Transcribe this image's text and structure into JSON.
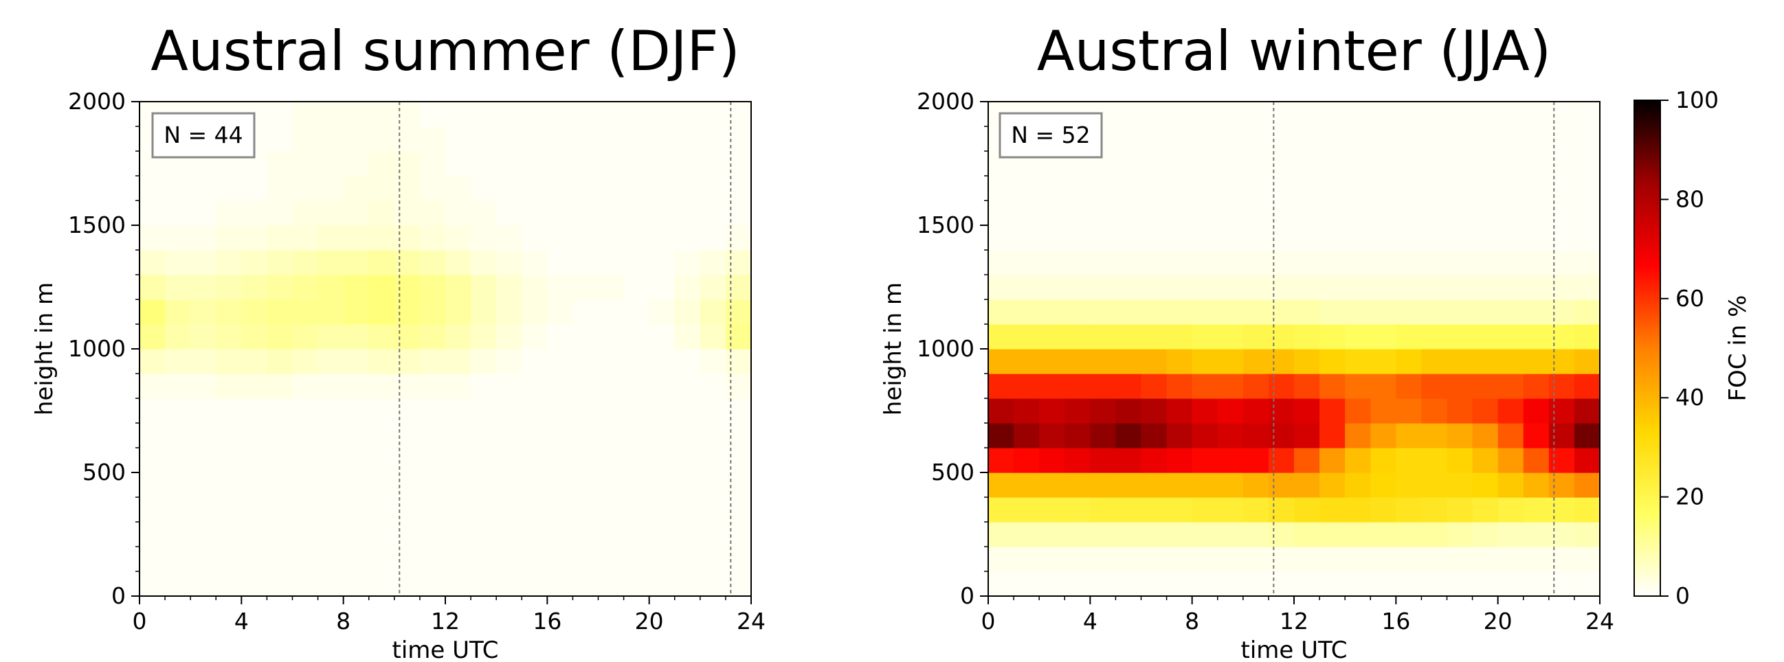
{
  "chart_data": [
    {
      "type": "heatmap",
      "title": "Austral summer (DJF)",
      "xlabel": "time UTC",
      "ylabel": "height in m",
      "xlim": [
        0,
        24
      ],
      "ylim": [
        0,
        2000
      ],
      "xticks": [
        "0",
        "4",
        "8",
        "12",
        "16",
        "20",
        "24"
      ],
      "yticks": [
        "0",
        "500",
        "1000",
        "1500",
        "2000"
      ],
      "annotation": "N = 44",
      "vlines": [
        10.2,
        23.2
      ],
      "grid": false,
      "x": [
        0.5,
        1.5,
        2.5,
        3.5,
        4.5,
        5.5,
        6.5,
        7.5,
        8.5,
        9.5,
        10.5,
        11.5,
        12.5,
        13.5,
        14.5,
        15.5,
        16.5,
        17.5,
        18.5,
        19.5,
        20.5,
        21.5,
        22.5,
        23.5
      ],
      "y": [
        50,
        150,
        250,
        350,
        450,
        550,
        650,
        750,
        850,
        950,
        1050,
        1150,
        1250,
        1350,
        1450,
        1550,
        1650,
        1750,
        1850,
        1950
      ],
      "z": [
        [
          1,
          1,
          1,
          1,
          1,
          1,
          1,
          1,
          1,
          1,
          1,
          1,
          1,
          1,
          1,
          1,
          1,
          1,
          1,
          1,
          1,
          1,
          1,
          1
        ],
        [
          1,
          1,
          1,
          1,
          1,
          1,
          1,
          1,
          1,
          1,
          1,
          1,
          1,
          1,
          1,
          1,
          1,
          1,
          1,
          1,
          1,
          1,
          1,
          1
        ],
        [
          1,
          1,
          1,
          1,
          1,
          1,
          1,
          1,
          1,
          1,
          1,
          1,
          1,
          1,
          1,
          1,
          1,
          1,
          1,
          1,
          1,
          1,
          1,
          1
        ],
        [
          1,
          1,
          1,
          1,
          1,
          1,
          1,
          1,
          1,
          1,
          1,
          1,
          1,
          1,
          1,
          1,
          1,
          1,
          1,
          1,
          1,
          1,
          1,
          1
        ],
        [
          1,
          1,
          1,
          1,
          1,
          1,
          1,
          1,
          1,
          1,
          1,
          1,
          1,
          1,
          1,
          1,
          1,
          1,
          1,
          1,
          1,
          1,
          1,
          1
        ],
        [
          1,
          1,
          1,
          1,
          1,
          1,
          1,
          1,
          1,
          1,
          1,
          1,
          1,
          1,
          1,
          1,
          1,
          1,
          1,
          1,
          1,
          1,
          1,
          1
        ],
        [
          1,
          1,
          1,
          1,
          1,
          1,
          1,
          1,
          1,
          1,
          1,
          1,
          1,
          1,
          1,
          1,
          1,
          1,
          1,
          1,
          1,
          1,
          1,
          1
        ],
        [
          1,
          1,
          1,
          1,
          1,
          1,
          1,
          1,
          1,
          1,
          1,
          1,
          1,
          1,
          1,
          1,
          1,
          1,
          1,
          1,
          1,
          1,
          1,
          1
        ],
        [
          2,
          2,
          2,
          3,
          3,
          3,
          2,
          2,
          2,
          2,
          2,
          2,
          2,
          1,
          1,
          1,
          1,
          1,
          1,
          1,
          1,
          1,
          1,
          2
        ],
        [
          6,
          5,
          5,
          6,
          6,
          7,
          6,
          5,
          5,
          6,
          6,
          5,
          5,
          3,
          2,
          1,
          1,
          1,
          1,
          1,
          1,
          1,
          2,
          4
        ],
        [
          12,
          9,
          8,
          9,
          10,
          11,
          10,
          9,
          9,
          10,
          11,
          10,
          8,
          6,
          4,
          2,
          1,
          1,
          1,
          1,
          1,
          3,
          6,
          12
        ],
        [
          14,
          10,
          9,
          10,
          11,
          12,
          12,
          12,
          13,
          14,
          13,
          12,
          10,
          7,
          5,
          3,
          2,
          1,
          1,
          1,
          2,
          4,
          7,
          11
        ],
        [
          9,
          7,
          7,
          8,
          9,
          10,
          11,
          12,
          13,
          14,
          13,
          12,
          10,
          7,
          5,
          3,
          2,
          2,
          2,
          1,
          1,
          3,
          5,
          8
        ],
        [
          5,
          4,
          4,
          5,
          6,
          7,
          8,
          9,
          9,
          10,
          9,
          8,
          6,
          4,
          3,
          2,
          1,
          1,
          1,
          1,
          1,
          2,
          3,
          5
        ],
        [
          2,
          2,
          2,
          3,
          3,
          4,
          4,
          5,
          5,
          5,
          5,
          4,
          3,
          2,
          2,
          1,
          1,
          1,
          1,
          1,
          1,
          1,
          1,
          2
        ],
        [
          1,
          1,
          1,
          2,
          2,
          2,
          3,
          3,
          3,
          4,
          3,
          3,
          2,
          2,
          1,
          1,
          1,
          1,
          1,
          1,
          1,
          1,
          1,
          1
        ],
        [
          1,
          1,
          1,
          1,
          1,
          2,
          2,
          2,
          3,
          3,
          3,
          2,
          2,
          1,
          1,
          1,
          1,
          1,
          1,
          1,
          1,
          1,
          1,
          1
        ],
        [
          1,
          1,
          1,
          1,
          1,
          2,
          2,
          2,
          2,
          3,
          3,
          2,
          1,
          1,
          1,
          1,
          1,
          1,
          1,
          1,
          1,
          1,
          1,
          1
        ],
        [
          1,
          1,
          1,
          1,
          1,
          1,
          2,
          2,
          2,
          2,
          2,
          2,
          1,
          1,
          1,
          1,
          1,
          1,
          1,
          1,
          1,
          1,
          1,
          1
        ],
        [
          1,
          1,
          1,
          1,
          1,
          1,
          2,
          2,
          2,
          2,
          2,
          1,
          1,
          1,
          1,
          1,
          1,
          1,
          1,
          1,
          1,
          1,
          1,
          1
        ]
      ]
    },
    {
      "type": "heatmap",
      "title": "Austral winter (JJA)",
      "xlabel": "time UTC",
      "ylabel": "height in m",
      "xlim": [
        0,
        24
      ],
      "ylim": [
        0,
        2000
      ],
      "xticks": [
        "0",
        "4",
        "8",
        "12",
        "16",
        "20",
        "24"
      ],
      "yticks": [
        "0",
        "500",
        "1000",
        "1500",
        "2000"
      ],
      "annotation": "N = 52",
      "vlines": [
        11.2,
        22.2
      ],
      "grid": false,
      "x": [
        0.5,
        1.5,
        2.5,
        3.5,
        4.5,
        5.5,
        6.5,
        7.5,
        8.5,
        9.5,
        10.5,
        11.5,
        12.5,
        13.5,
        14.5,
        15.5,
        16.5,
        17.5,
        18.5,
        19.5,
        20.5,
        21.5,
        22.5,
        23.5
      ],
      "y": [
        50,
        150,
        250,
        350,
        450,
        550,
        650,
        750,
        850,
        950,
        1050,
        1150,
        1250,
        1350,
        1450,
        1550,
        1650,
        1750,
        1850,
        1950
      ],
      "z": [
        [
          1,
          1,
          1,
          1,
          1,
          1,
          1,
          1,
          1,
          1,
          1,
          1,
          1,
          1,
          1,
          1,
          1,
          1,
          1,
          1,
          1,
          1,
          1,
          1
        ],
        [
          2,
          2,
          2,
          2,
          2,
          2,
          2,
          2,
          2,
          2,
          2,
          2,
          2,
          2,
          2,
          2,
          2,
          2,
          2,
          2,
          2,
          2,
          2,
          2
        ],
        [
          8,
          8,
          8,
          8,
          8,
          8,
          8,
          8,
          8,
          8,
          8,
          9,
          10,
          10,
          10,
          10,
          10,
          10,
          9,
          8,
          7,
          7,
          7,
          8
        ],
        [
          22,
          22,
          22,
          22,
          23,
          23,
          23,
          23,
          24,
          24,
          25,
          27,
          29,
          30,
          30,
          29,
          28,
          27,
          26,
          24,
          22,
          21,
          21,
          22
        ],
        [
          38,
          38,
          38,
          38,
          38,
          38,
          38,
          38,
          38,
          38,
          40,
          42,
          42,
          38,
          35,
          33,
          32,
          32,
          32,
          33,
          36,
          40,
          44,
          48
        ],
        [
          65,
          66,
          68,
          70,
          72,
          72,
          70,
          68,
          66,
          66,
          66,
          62,
          55,
          45,
          38,
          34,
          32,
          32,
          34,
          38,
          45,
          55,
          65,
          72
        ],
        [
          88,
          84,
          80,
          82,
          85,
          88,
          85,
          80,
          76,
          74,
          75,
          76,
          74,
          62,
          50,
          44,
          40,
          40,
          42,
          46,
          55,
          66,
          78,
          88
        ],
        [
          80,
          78,
          76,
          78,
          80,
          82,
          80,
          76,
          72,
          70,
          72,
          74,
          72,
          62,
          55,
          52,
          52,
          54,
          56,
          58,
          62,
          68,
          74,
          80
        ],
        [
          62,
          62,
          62,
          62,
          62,
          62,
          60,
          58,
          56,
          56,
          58,
          60,
          58,
          54,
          52,
          52,
          54,
          56,
          56,
          56,
          56,
          58,
          60,
          62
        ],
        [
          40,
          40,
          40,
          40,
          40,
          40,
          40,
          38,
          36,
          36,
          38,
          38,
          36,
          34,
          32,
          32,
          34,
          36,
          36,
          36,
          36,
          36,
          36,
          38
        ],
        [
          20,
          20,
          20,
          20,
          20,
          20,
          20,
          20,
          19,
          19,
          20,
          20,
          19,
          18,
          17,
          17,
          18,
          18,
          18,
          18,
          18,
          18,
          18,
          19
        ],
        [
          9,
          9,
          9,
          9,
          9,
          9,
          9,
          9,
          9,
          9,
          9,
          9,
          9,
          8,
          8,
          8,
          8,
          8,
          8,
          8,
          8,
          8,
          8,
          9
        ],
        [
          4,
          4,
          4,
          4,
          4,
          4,
          4,
          4,
          4,
          4,
          4,
          4,
          4,
          4,
          4,
          4,
          4,
          4,
          4,
          4,
          4,
          4,
          4,
          4
        ],
        [
          2,
          2,
          2,
          2,
          2,
          2,
          2,
          2,
          2,
          2,
          2,
          2,
          2,
          2,
          2,
          2,
          2,
          2,
          2,
          2,
          2,
          2,
          2,
          2
        ],
        [
          1,
          1,
          1,
          1,
          1,
          1,
          1,
          1,
          1,
          1,
          1,
          1,
          1,
          1,
          1,
          1,
          1,
          1,
          1,
          1,
          1,
          1,
          1,
          1
        ],
        [
          1,
          1,
          1,
          1,
          1,
          1,
          1,
          1,
          1,
          1,
          1,
          1,
          1,
          1,
          1,
          1,
          1,
          1,
          1,
          1,
          1,
          1,
          1,
          1
        ],
        [
          1,
          1,
          1,
          1,
          1,
          1,
          1,
          1,
          1,
          1,
          1,
          1,
          1,
          1,
          1,
          1,
          1,
          1,
          1,
          1,
          1,
          1,
          1,
          1
        ],
        [
          1,
          1,
          1,
          1,
          1,
          1,
          1,
          1,
          1,
          1,
          1,
          1,
          1,
          1,
          1,
          1,
          1,
          1,
          1,
          1,
          1,
          1,
          1,
          1
        ],
        [
          1,
          1,
          1,
          1,
          1,
          1,
          1,
          1,
          1,
          1,
          1,
          1,
          1,
          1,
          1,
          1,
          1,
          1,
          1,
          1,
          1,
          1,
          1,
          1
        ],
        [
          1,
          1,
          1,
          1,
          1,
          1,
          1,
          1,
          1,
          1,
          1,
          1,
          1,
          1,
          1,
          1,
          1,
          1,
          1,
          1,
          1,
          1,
          1,
          1
        ]
      ]
    }
  ],
  "colorbar": {
    "label": "FOC in %",
    "range": [
      0,
      100
    ],
    "ticks": [
      "0",
      "20",
      "40",
      "60",
      "80",
      "100"
    ],
    "colormap": "hot_r",
    "stops": [
      "#ffffff",
      "#ffff60",
      "#ffd700",
      "#ff8000",
      "#ff0000",
      "#a00000",
      "#000000"
    ]
  }
}
